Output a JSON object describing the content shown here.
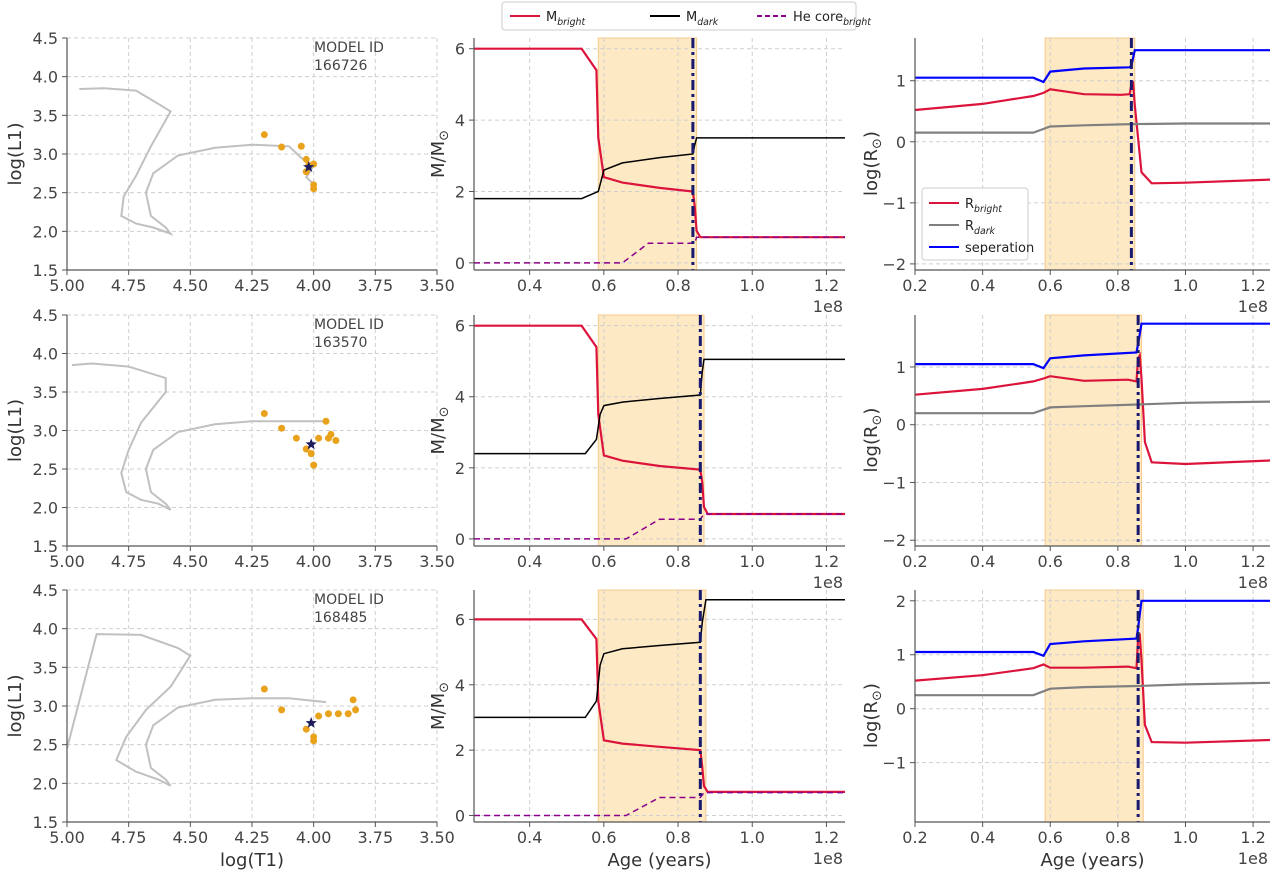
{
  "legend_top": [
    {
      "label": "M",
      "sub": "bright",
      "color": "#dc143c",
      "dash": "solid"
    },
    {
      "label": "M",
      "sub": "dark",
      "color": "#000000",
      "dash": "solid"
    },
    {
      "label": "He core",
      "sub": "bright",
      "color": "#8b008b",
      "dash": "dashed"
    }
  ],
  "legend_radius": [
    {
      "label": "R",
      "sub": "bright",
      "color": "#dc143c"
    },
    {
      "label": "R",
      "sub": "dark",
      "color": "#808080"
    },
    {
      "label": "seperation",
      "sub": "",
      "color": "#0000ff"
    }
  ],
  "axis_text": {
    "hr_ylabel": "log(L1)",
    "hr_xlabel": "log(T1)",
    "mass_ylabel": "M/M",
    "mass_ylabel_sub": "⊙",
    "radius_ylabel": "log(R",
    "radius_ylabel_sub": "⊙",
    "radius_ylabel_close": ")",
    "age_xlabel": "Age (years)",
    "offset_label": "1e8",
    "model_id_label": "MODEL ID"
  },
  "colors": {
    "track": "#c0c0c0",
    "points": "#e8a21c",
    "star": "#1c1c5c",
    "shade": "#fde9c4",
    "vline": "#191970"
  },
  "chart_data": [
    {
      "type": "line",
      "panel": "HR diagram",
      "model_id": "166726",
      "xlabel": "",
      "ylabel": "log(L1)",
      "xlim": [
        5.0,
        3.5
      ],
      "ylim": [
        1.5,
        4.5
      ],
      "xticks": [
        "5.00",
        "4.75",
        "4.50",
        "4.25",
        "4.00",
        "3.75",
        "3.50"
      ],
      "yticks": [
        "1.5",
        "2.0",
        "2.5",
        "3.0",
        "3.5",
        "4.0",
        "4.5"
      ],
      "track": [
        [
          4.95,
          3.84
        ],
        [
          4.85,
          3.85
        ],
        [
          4.72,
          3.82
        ],
        [
          4.62,
          3.63
        ],
        [
          4.58,
          3.55
        ],
        [
          4.66,
          3.1
        ],
        [
          4.72,
          2.72
        ],
        [
          4.77,
          2.45
        ],
        [
          4.78,
          2.2
        ],
        [
          4.72,
          2.1
        ],
        [
          4.65,
          2.05
        ],
        [
          4.58,
          1.97
        ],
        [
          4.6,
          2.05
        ],
        [
          4.66,
          2.2
        ],
        [
          4.68,
          2.5
        ],
        [
          4.65,
          2.75
        ],
        [
          4.55,
          2.98
        ],
        [
          4.4,
          3.08
        ],
        [
          4.25,
          3.12
        ],
        [
          4.1,
          3.1
        ],
        [
          4.05,
          2.95
        ],
        [
          4.0,
          2.85
        ],
        [
          4.03,
          2.7
        ],
        [
          3.99,
          2.58
        ]
      ],
      "points": [
        [
          4.2,
          3.25
        ],
        [
          4.13,
          3.09
        ],
        [
          4.05,
          3.1
        ],
        [
          4.03,
          2.93
        ],
        [
          4.02,
          2.85
        ],
        [
          4.0,
          2.87
        ],
        [
          4.03,
          2.77
        ],
        [
          4.0,
          2.6
        ],
        [
          4.0,
          2.55
        ]
      ],
      "star": [
        4.02,
        2.83
      ]
    },
    {
      "type": "line",
      "panel": "mass evolution",
      "model_id": "166726",
      "xlabel": "",
      "ylabel": "M/M⊙",
      "xlim": [
        0.25,
        1.25
      ],
      "ylim": [
        -0.2,
        6.3
      ],
      "xticks": [
        "0.4",
        "0.6",
        "0.8",
        "1.0",
        "1.2"
      ],
      "yticks": [
        "0",
        "2",
        "4",
        "6"
      ],
      "shade": [
        0.585,
        0.85
      ],
      "vline": 0.84,
      "series": [
        {
          "name": "M_bright",
          "x": [
            0.25,
            0.54,
            0.58,
            0.585,
            0.6,
            0.65,
            0.75,
            0.84,
            0.845,
            0.85,
            0.86,
            1.0,
            1.25
          ],
          "y": [
            6.0,
            6.0,
            5.4,
            3.5,
            2.4,
            2.25,
            2.1,
            2.0,
            1.6,
            0.9,
            0.72,
            0.72,
            0.72
          ]
        },
        {
          "name": "M_dark",
          "x": [
            0.25,
            0.54,
            0.585,
            0.6,
            0.65,
            0.75,
            0.84,
            0.845,
            0.85,
            1.0,
            1.25
          ],
          "y": [
            1.8,
            1.8,
            2.0,
            2.6,
            2.8,
            2.95,
            3.05,
            3.3,
            3.5,
            3.5,
            3.5
          ]
        },
        {
          "name": "He core_bright",
          "x": [
            0.25,
            0.65,
            0.72,
            0.845,
            0.85,
            1.0,
            1.25
          ],
          "y": [
            0.0,
            0.0,
            0.55,
            0.55,
            0.72,
            0.72,
            0.72
          ]
        }
      ]
    },
    {
      "type": "line",
      "panel": "radius evolution",
      "model_id": "166726",
      "xlabel": "",
      "ylabel": "log(R⊙)",
      "xlim": [
        0.2,
        1.25
      ],
      "ylim": [
        -2.1,
        1.7
      ],
      "xticks": [
        "0.2",
        "0.4",
        "0.6",
        "0.8",
        "1.0",
        "1.2"
      ],
      "yticks": [
        "-2",
        "-1",
        "0",
        "1"
      ],
      "shade": [
        0.585,
        0.85
      ],
      "vline": 0.84,
      "series": [
        {
          "name": "R_bright",
          "x": [
            0.2,
            0.4,
            0.55,
            0.58,
            0.6,
            0.7,
            0.81,
            0.835,
            0.84,
            0.845,
            0.85,
            0.87,
            0.9,
            1.0,
            1.25
          ],
          "y": [
            0.52,
            0.62,
            0.75,
            0.8,
            0.86,
            0.78,
            0.77,
            0.78,
            0.95,
            0.97,
            0.6,
            -0.5,
            -0.68,
            -0.67,
            -0.62
          ]
        },
        {
          "name": "R_dark",
          "x": [
            0.2,
            0.55,
            0.6,
            0.7,
            0.84,
            1.0,
            1.25
          ],
          "y": [
            0.15,
            0.15,
            0.25,
            0.27,
            0.29,
            0.3,
            0.3
          ]
        },
        {
          "name": "seperation",
          "x": [
            0.2,
            0.55,
            0.58,
            0.6,
            0.7,
            0.835,
            0.84,
            0.85,
            1.0,
            1.25
          ],
          "y": [
            1.05,
            1.05,
            0.98,
            1.15,
            1.2,
            1.22,
            1.25,
            1.5,
            1.5,
            1.5
          ]
        }
      ]
    },
    {
      "type": "line",
      "panel": "HR diagram",
      "model_id": "163570",
      "xlabel": "",
      "ylabel": "log(L1)",
      "xlim": [
        5.0,
        3.5
      ],
      "ylim": [
        1.5,
        4.5
      ],
      "xticks": [
        "5.00",
        "4.75",
        "4.50",
        "4.25",
        "4.00",
        "3.75",
        "3.50"
      ],
      "yticks": [
        "1.5",
        "2.0",
        "2.5",
        "3.0",
        "3.5",
        "4.0",
        "4.5"
      ],
      "track": [
        [
          4.98,
          3.85
        ],
        [
          4.9,
          3.87
        ],
        [
          4.75,
          3.83
        ],
        [
          4.6,
          3.68
        ],
        [
          4.6,
          3.5
        ],
        [
          4.7,
          3.1
        ],
        [
          4.75,
          2.75
        ],
        [
          4.78,
          2.45
        ],
        [
          4.76,
          2.2
        ],
        [
          4.7,
          2.1
        ],
        [
          4.63,
          2.05
        ],
        [
          4.58,
          1.97
        ],
        [
          4.6,
          2.05
        ],
        [
          4.66,
          2.2
        ],
        [
          4.68,
          2.5
        ],
        [
          4.65,
          2.75
        ],
        [
          4.55,
          2.98
        ],
        [
          4.4,
          3.08
        ],
        [
          4.25,
          3.12
        ],
        [
          4.1,
          3.12
        ],
        [
          3.96,
          3.12
        ]
      ],
      "points": [
        [
          4.2,
          3.22
        ],
        [
          4.13,
          3.03
        ],
        [
          4.07,
          2.9
        ],
        [
          4.03,
          2.76
        ],
        [
          4.01,
          2.7
        ],
        [
          4.0,
          2.55
        ],
        [
          3.98,
          2.9
        ],
        [
          3.94,
          2.9
        ],
        [
          3.91,
          2.87
        ],
        [
          3.93,
          2.95
        ],
        [
          3.95,
          3.12
        ]
      ],
      "star": [
        4.01,
        2.82
      ]
    },
    {
      "type": "line",
      "panel": "mass evolution",
      "model_id": "163570",
      "xlabel": "",
      "ylabel": "M/M⊙",
      "xlim": [
        0.25,
        1.25
      ],
      "ylim": [
        -0.2,
        6.3
      ],
      "xticks": [
        "0.4",
        "0.6",
        "0.8",
        "1.0",
        "1.2"
      ],
      "yticks": [
        "0",
        "2",
        "4",
        "6"
      ],
      "shade": [
        0.585,
        0.87
      ],
      "vline": 0.86,
      "series": [
        {
          "name": "M_bright",
          "x": [
            0.25,
            0.54,
            0.58,
            0.585,
            0.6,
            0.65,
            0.75,
            0.86,
            0.865,
            0.87,
            0.88,
            1.0,
            1.25
          ],
          "y": [
            6.0,
            6.0,
            5.4,
            3.5,
            2.35,
            2.2,
            2.05,
            1.95,
            1.6,
            0.9,
            0.7,
            0.7,
            0.7
          ]
        },
        {
          "name": "M_dark",
          "x": [
            0.25,
            0.55,
            0.58,
            0.59,
            0.6,
            0.65,
            0.75,
            0.86,
            0.865,
            0.87,
            1.0,
            1.25
          ],
          "y": [
            2.4,
            2.4,
            2.8,
            3.5,
            3.75,
            3.85,
            3.95,
            4.05,
            4.7,
            5.05,
            5.05,
            5.05
          ]
        },
        {
          "name": "He core_bright",
          "x": [
            0.25,
            0.66,
            0.75,
            0.86,
            0.87,
            1.0,
            1.25
          ],
          "y": [
            0.0,
            0.0,
            0.55,
            0.55,
            0.7,
            0.7,
            0.7
          ]
        }
      ]
    },
    {
      "type": "line",
      "panel": "radius evolution",
      "model_id": "163570",
      "xlabel": "",
      "ylabel": "log(R⊙)",
      "xlim": [
        0.2,
        1.25
      ],
      "ylim": [
        -2.1,
        1.9
      ],
      "xticks": [
        "0.2",
        "0.4",
        "0.6",
        "0.8",
        "1.0",
        "1.2"
      ],
      "yticks": [
        "-2",
        "-1",
        "0",
        "1"
      ],
      "shade": [
        0.585,
        0.87
      ],
      "vline": 0.86,
      "series": [
        {
          "name": "R_bright",
          "x": [
            0.2,
            0.4,
            0.55,
            0.58,
            0.6,
            0.7,
            0.83,
            0.855,
            0.86,
            0.865,
            0.87,
            0.88,
            0.9,
            1.0,
            1.25
          ],
          "y": [
            0.52,
            0.62,
            0.75,
            0.8,
            0.84,
            0.76,
            0.78,
            0.75,
            1.15,
            1.2,
            0.8,
            -0.3,
            -0.65,
            -0.68,
            -0.62
          ]
        },
        {
          "name": "R_dark",
          "x": [
            0.2,
            0.55,
            0.6,
            0.7,
            0.86,
            1.0,
            1.25
          ],
          "y": [
            0.2,
            0.2,
            0.3,
            0.32,
            0.35,
            0.38,
            0.4
          ]
        },
        {
          "name": "seperation",
          "x": [
            0.2,
            0.55,
            0.58,
            0.6,
            0.7,
            0.855,
            0.86,
            0.87,
            1.0,
            1.25
          ],
          "y": [
            1.05,
            1.05,
            0.98,
            1.15,
            1.2,
            1.25,
            1.4,
            1.75,
            1.75,
            1.75
          ]
        }
      ]
    },
    {
      "type": "line",
      "panel": "HR diagram",
      "model_id": "168485",
      "xlabel": "log(T1)",
      "ylabel": "log(L1)",
      "xlim": [
        5.0,
        3.5
      ],
      "ylim": [
        1.5,
        4.5
      ],
      "xticks": [
        "5.00",
        "4.75",
        "4.50",
        "4.25",
        "4.00",
        "3.75",
        "3.50"
      ],
      "yticks": [
        "1.5",
        "2.0",
        "2.5",
        "3.0",
        "3.5",
        "4.0",
        "4.5"
      ],
      "track": [
        [
          5.0,
          2.45
        ],
        [
          4.88,
          3.93
        ],
        [
          4.7,
          3.92
        ],
        [
          4.55,
          3.75
        ],
        [
          4.5,
          3.65
        ],
        [
          4.58,
          3.25
        ],
        [
          4.68,
          2.95
        ],
        [
          4.76,
          2.6
        ],
        [
          4.8,
          2.3
        ],
        [
          4.72,
          2.15
        ],
        [
          4.63,
          2.05
        ],
        [
          4.58,
          1.97
        ],
        [
          4.6,
          2.05
        ],
        [
          4.66,
          2.2
        ],
        [
          4.68,
          2.5
        ],
        [
          4.65,
          2.75
        ],
        [
          4.55,
          2.98
        ],
        [
          4.4,
          3.08
        ],
        [
          4.25,
          3.1
        ],
        [
          4.1,
          3.1
        ],
        [
          3.95,
          3.05
        ]
      ],
      "points": [
        [
          4.2,
          3.22
        ],
        [
          4.13,
          2.95
        ],
        [
          4.03,
          2.7
        ],
        [
          4.0,
          2.55
        ],
        [
          4.0,
          2.6
        ],
        [
          3.98,
          2.87
        ],
        [
          3.94,
          2.9
        ],
        [
          3.9,
          2.9
        ],
        [
          3.86,
          2.9
        ],
        [
          3.83,
          2.95
        ],
        [
          3.84,
          3.08
        ]
      ],
      "star": [
        4.01,
        2.78
      ]
    },
    {
      "type": "line",
      "panel": "mass evolution",
      "model_id": "168485",
      "xlabel": "Age (years)",
      "ylabel": "M/M⊙",
      "xlim": [
        0.25,
        1.25
      ],
      "ylim": [
        -0.2,
        6.9
      ],
      "xticks": [
        "0.4",
        "0.6",
        "0.8",
        "1.0",
        "1.2"
      ],
      "yticks": [
        "0",
        "2",
        "4",
        "6"
      ],
      "shade": [
        0.585,
        0.875
      ],
      "vline": 0.86,
      "series": [
        {
          "name": "M_bright",
          "x": [
            0.25,
            0.54,
            0.58,
            0.585,
            0.6,
            0.65,
            0.75,
            0.86,
            0.865,
            0.87,
            0.88,
            1.0,
            1.25
          ],
          "y": [
            6.0,
            6.0,
            5.4,
            3.5,
            2.3,
            2.2,
            2.1,
            2.0,
            1.5,
            0.9,
            0.72,
            0.72,
            0.72
          ]
        },
        {
          "name": "M_dark",
          "x": [
            0.25,
            0.55,
            0.58,
            0.59,
            0.6,
            0.65,
            0.75,
            0.86,
            0.865,
            0.875,
            1.0,
            1.25
          ],
          "y": [
            3.0,
            3.0,
            3.5,
            4.6,
            4.95,
            5.1,
            5.2,
            5.3,
            5.9,
            6.6,
            6.6,
            6.6
          ]
        },
        {
          "name": "He core_bright",
          "x": [
            0.25,
            0.66,
            0.75,
            0.86,
            0.87,
            1.0,
            1.25
          ],
          "y": [
            0.0,
            0.0,
            0.55,
            0.55,
            0.7,
            0.7,
            0.7
          ]
        }
      ]
    },
    {
      "type": "line",
      "panel": "radius evolution",
      "model_id": "168485",
      "xlabel": "Age (years)",
      "ylabel": "log(R⊙)",
      "xlim": [
        0.2,
        1.25
      ],
      "ylim": [
        -2.1,
        2.2
      ],
      "xticks": [
        "0.2",
        "0.4",
        "0.6",
        "0.8",
        "1.0",
        "1.2"
      ],
      "yticks": [
        "-1",
        "0",
        "1",
        "2"
      ],
      "shade": [
        0.585,
        0.875
      ],
      "vline": 0.86,
      "series": [
        {
          "name": "R_bright",
          "x": [
            0.2,
            0.4,
            0.55,
            0.58,
            0.6,
            0.7,
            0.83,
            0.855,
            0.86,
            0.865,
            0.87,
            0.88,
            0.9,
            1.0,
            1.25
          ],
          "y": [
            0.52,
            0.62,
            0.75,
            0.82,
            0.76,
            0.76,
            0.78,
            0.75,
            1.3,
            1.35,
            0.9,
            -0.3,
            -0.62,
            -0.63,
            -0.58
          ]
        },
        {
          "name": "R_dark",
          "x": [
            0.2,
            0.55,
            0.6,
            0.7,
            0.86,
            1.0,
            1.25
          ],
          "y": [
            0.25,
            0.25,
            0.37,
            0.4,
            0.42,
            0.45,
            0.48
          ]
        },
        {
          "name": "seperation",
          "x": [
            0.2,
            0.55,
            0.58,
            0.6,
            0.7,
            0.855,
            0.86,
            0.87,
            1.0,
            1.25
          ],
          "y": [
            1.05,
            1.05,
            0.98,
            1.2,
            1.25,
            1.3,
            1.5,
            2.0,
            2.0,
            2.0
          ]
        }
      ]
    }
  ]
}
